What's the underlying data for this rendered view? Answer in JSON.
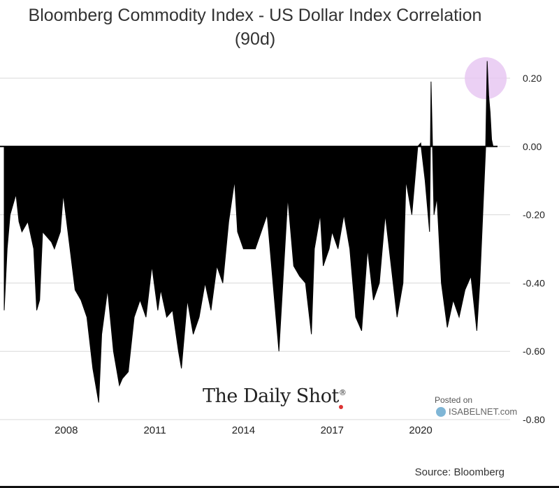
{
  "chart_data": {
    "type": "area",
    "title": "Bloomberg Commodity Index - US Dollar Index Correlation",
    "subtitle": "(90d)",
    "xlabel": "",
    "ylabel": "",
    "xlim": [
      2005.9,
      2022.6
    ],
    "ylim": [
      -0.8,
      0.2
    ],
    "y_ticks": [
      0.2,
      0.0,
      -0.2,
      -0.4,
      -0.6,
      -0.8
    ],
    "y_tick_labels": [
      "0.20",
      "0.00",
      "-0.20",
      "-0.40",
      "-0.60",
      "-0.80"
    ],
    "x_ticks": [
      2008,
      2011,
      2014,
      2017,
      2020
    ],
    "x_tick_labels": [
      "2008",
      "2011",
      "2014",
      "2017",
      "2020"
    ],
    "grid": "horizontal",
    "series": [
      {
        "x": [
          2005.9,
          2006.0,
          2006.1,
          2006.3,
          2006.4,
          2006.5,
          2006.7,
          2006.9,
          2007.0,
          2007.1,
          2007.2,
          2007.4,
          2007.5,
          2007.6,
          2007.8,
          2007.9,
          2008.1,
          2008.3,
          2008.5,
          2008.7,
          2008.9,
          2009.1,
          2009.2,
          2009.4,
          2009.6,
          2009.8,
          2009.9,
          2010.1,
          2010.3,
          2010.5,
          2010.7,
          2010.9,
          2011.1,
          2011.2,
          2011.4,
          2011.6,
          2011.8,
          2011.9,
          2012.1,
          2012.3,
          2012.5,
          2012.7,
          2012.9,
          2013.1,
          2013.3,
          2013.5,
          2013.7,
          2013.8,
          2014.0,
          2014.2,
          2014.4,
          2014.6,
          2014.8,
          2015.0,
          2015.2,
          2015.4,
          2015.5,
          2015.7,
          2015.9,
          2016.1,
          2016.3,
          2016.4,
          2016.6,
          2016.7,
          2016.9,
          2017.0,
          2017.2,
          2017.4,
          2017.6,
          2017.8,
          2018.0,
          2018.2,
          2018.4,
          2018.6,
          2018.8,
          2019.0,
          2019.2,
          2019.4,
          2019.5,
          2019.7,
          2019.9,
          2020.0,
          2020.15,
          2020.3,
          2020.35,
          2020.4,
          2020.45,
          2020.55,
          2020.7,
          2020.9,
          2021.1,
          2021.3,
          2021.5,
          2021.7,
          2021.9,
          2022.0,
          2022.1,
          2022.2,
          2022.25,
          2022.3,
          2022.35,
          2022.4,
          2022.45
        ],
        "y": [
          -0.48,
          -0.3,
          -0.2,
          -0.14,
          -0.22,
          -0.25,
          -0.22,
          -0.3,
          -0.48,
          -0.45,
          -0.25,
          -0.27,
          -0.28,
          -0.3,
          -0.25,
          -0.14,
          -0.28,
          -0.42,
          -0.45,
          -0.5,
          -0.65,
          -0.75,
          -0.55,
          -0.42,
          -0.6,
          -0.7,
          -0.68,
          -0.66,
          -0.5,
          -0.45,
          -0.5,
          -0.35,
          -0.48,
          -0.42,
          -0.5,
          -0.48,
          -0.6,
          -0.65,
          -0.45,
          -0.55,
          -0.5,
          -0.4,
          -0.48,
          -0.35,
          -0.4,
          -0.22,
          -0.1,
          -0.25,
          -0.3,
          -0.3,
          -0.3,
          -0.25,
          -0.2,
          -0.4,
          -0.6,
          -0.3,
          -0.15,
          -0.35,
          -0.38,
          -0.4,
          -0.55,
          -0.3,
          -0.2,
          -0.35,
          -0.3,
          -0.25,
          -0.3,
          -0.2,
          -0.3,
          -0.5,
          -0.54,
          -0.3,
          -0.45,
          -0.4,
          -0.2,
          -0.35,
          -0.5,
          -0.4,
          -0.1,
          -0.2,
          0.0,
          0.01,
          -0.1,
          -0.25,
          0.19,
          0.0,
          -0.2,
          -0.15,
          -0.4,
          -0.53,
          -0.45,
          -0.5,
          -0.42,
          -0.38,
          -0.54,
          -0.4,
          -0.2,
          0.0,
          0.25,
          0.15,
          0.1,
          0.02,
          0.0
        ]
      }
    ],
    "highlight": {
      "x": 2022.2,
      "y": 0.2,
      "color": "#e8c8f2"
    },
    "colors": {
      "fill": "#000000",
      "grid": "#d8d8d8",
      "tick_label": "#222222"
    }
  },
  "watermark": {
    "text": "The Daily Shot",
    "mark": "®"
  },
  "branding": {
    "posted_on": "Posted on",
    "site": "ISABELNET.com",
    "logo_icon": "globe-icon"
  },
  "source_note": "Source: Bloomberg"
}
